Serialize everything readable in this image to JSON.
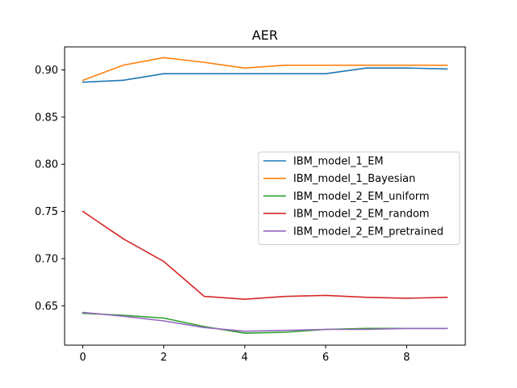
{
  "chart_data": {
    "type": "line",
    "title": "AER",
    "xlabel": "",
    "ylabel": "",
    "x": [
      0,
      1,
      2,
      3,
      4,
      5,
      6,
      7,
      8,
      9
    ],
    "xlim": [
      -0.45,
      9.45
    ],
    "ylim": [
      0.6083,
      0.9244
    ],
    "xticks": [
      0,
      2,
      4,
      6,
      8
    ],
    "yticks": [
      0.65,
      0.7,
      0.75,
      0.8,
      0.85,
      0.9
    ],
    "grid": false,
    "legend_position": "center-right",
    "series": [
      {
        "name": "IBM_model_1_EM",
        "color": "#1f77b4",
        "values": [
          0.887,
          0.889,
          0.896,
          0.896,
          0.896,
          0.896,
          0.896,
          0.902,
          0.902,
          0.901
        ]
      },
      {
        "name": "IBM_model_1_Bayesian",
        "color": "#ff7f0e",
        "values": [
          0.889,
          0.905,
          0.913,
          0.908,
          0.902,
          0.905,
          0.905,
          0.905,
          0.905,
          0.905
        ]
      },
      {
        "name": "IBM_model_2_EM_uniform",
        "color": "#2ca02c",
        "values": [
          0.642,
          0.64,
          0.637,
          0.628,
          0.621,
          0.622,
          0.625,
          0.626,
          0.626,
          0.626
        ]
      },
      {
        "name": "IBM_model_2_EM_random",
        "color": "#d62728",
        "values": [
          0.75,
          0.721,
          0.697,
          0.66,
          0.657,
          0.66,
          0.661,
          0.659,
          0.658,
          0.659
        ]
      },
      {
        "name": "IBM_model_2_EM_pretrained",
        "color": "#9467bd",
        "values": [
          0.643,
          0.639,
          0.634,
          0.627,
          0.623,
          0.624,
          0.625,
          0.625,
          0.626,
          0.626
        ]
      }
    ]
  }
}
